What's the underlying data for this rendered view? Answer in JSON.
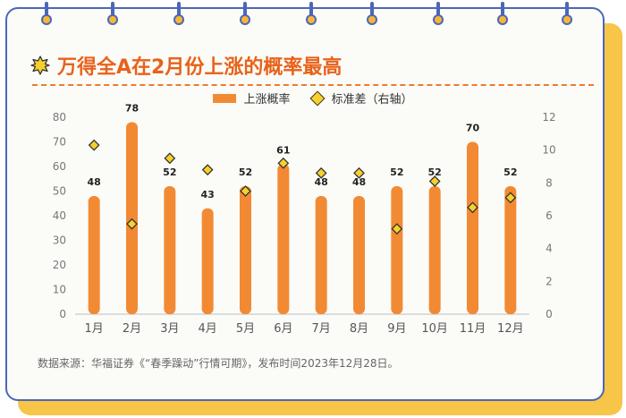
{
  "title": "万得全A在2月份上涨的概率最高",
  "source": "数据来源：华福证券《“春季躁动”行情可期》，发布时间2023年12月28日。",
  "colors": {
    "bar": "#f28a34",
    "diamond": "#f7d02c",
    "title": "#e8621a",
    "frame": "#4c67b8",
    "accent": "#f7c548"
  },
  "icons": [
    "sun-icon"
  ],
  "chart_data": {
    "type": "bar",
    "categories": [
      "1月",
      "2月",
      "3月",
      "4月",
      "5月",
      "6月",
      "7月",
      "8月",
      "9月",
      "10月",
      "11月",
      "12月"
    ],
    "series": [
      {
        "name": "上涨概率",
        "type": "bar",
        "axis": "left",
        "values": [
          48,
          78,
          52,
          43,
          52,
          61,
          48,
          48,
          52,
          52,
          70,
          52
        ]
      },
      {
        "name": "标准差（右轴）",
        "type": "scatter",
        "axis": "right",
        "values": [
          10.3,
          5.5,
          9.5,
          8.8,
          7.5,
          9.2,
          8.6,
          8.6,
          5.2,
          8.1,
          6.5,
          7.1
        ]
      }
    ],
    "y_left": {
      "min": 0,
      "max": 80,
      "ticks": [
        0,
        10,
        20,
        30,
        40,
        50,
        60,
        70,
        80
      ]
    },
    "y_right": {
      "min": 0,
      "max": 12,
      "ticks": [
        0,
        2,
        4,
        6,
        8,
        10,
        12
      ]
    },
    "data_labels": true,
    "legend_position": "top-center",
    "grid": false
  }
}
